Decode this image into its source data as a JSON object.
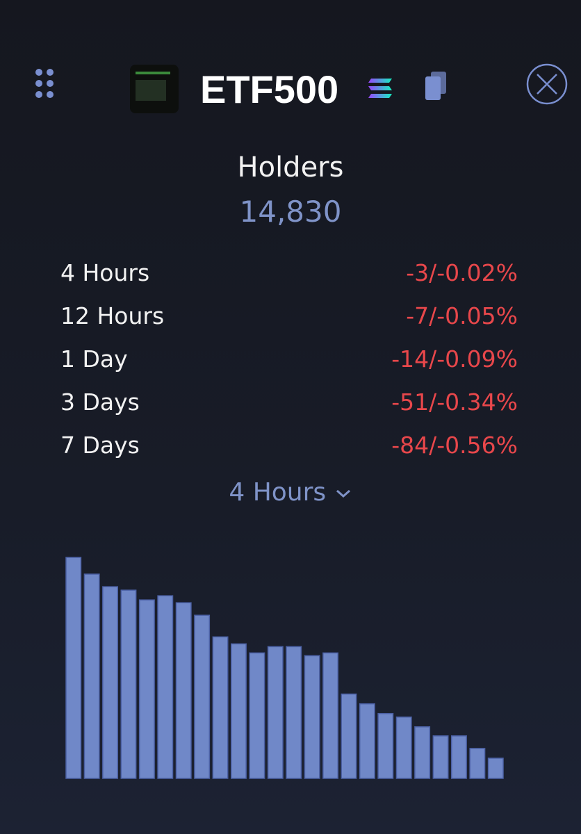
{
  "header": {
    "title": "ETF500"
  },
  "holders": {
    "label": "Holders",
    "value": "14,830"
  },
  "changes": [
    {
      "period": "4 Hours",
      "change": "-3/-0.02%"
    },
    {
      "period": "12 Hours",
      "change": "-7/-0.05%"
    },
    {
      "period": "1 Day",
      "change": "-14/-0.09%"
    },
    {
      "period": "3 Days",
      "change": "-51/-0.34%"
    },
    {
      "period": "7 Days",
      "change": "-84/-0.56%"
    }
  ],
  "selector": {
    "label": "4 Hours"
  },
  "chart_data": {
    "type": "bar",
    "color": "#7088c8",
    "values": [
      317,
      293,
      275,
      270,
      256,
      262,
      252,
      234,
      203,
      193,
      180,
      189,
      189,
      176,
      180,
      121,
      107,
      93,
      88,
      74,
      61,
      61,
      43,
      29
    ]
  }
}
